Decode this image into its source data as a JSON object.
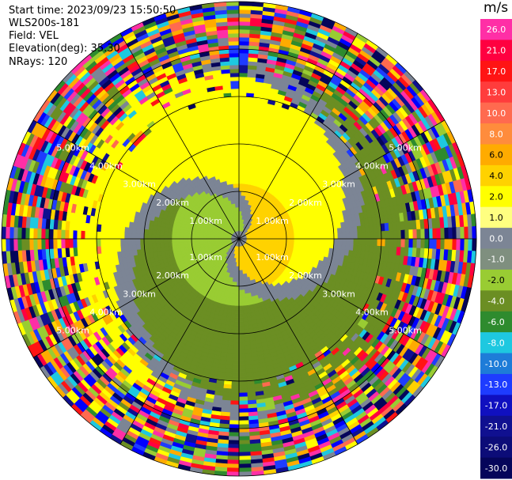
{
  "header": {
    "start_time": "Start time: 2023/09/23 15:50:50",
    "instrument": "WLS200s-181",
    "field": "Field: VEL",
    "elevation": "Elevation(deg): 35.30",
    "nrays": "NRays: 120"
  },
  "chart_data": {
    "type": "heatmap",
    "projection": "polar PPI",
    "field": "VEL",
    "units": "m/s",
    "nrays": 120,
    "elevation_deg": 35.3,
    "max_range_km": 5.0,
    "range_ring_labels": [
      "1.00km",
      "2.00km",
      "3.00km",
      "4.00km",
      "5.00km"
    ],
    "colorbar": {
      "unit": "m/s",
      "tick_labels": [
        "26.0",
        "21.0",
        "17.0",
        "13.0",
        "10.0",
        "8.0",
        "6.0",
        "4.0",
        "2.0",
        "1.0",
        "0.0",
        "-1.0",
        "-2.0",
        "-4.0",
        "-6.0",
        "-8.0",
        "-10.0",
        "-13.0",
        "-17.0",
        "-21.0",
        "-26.0",
        "-30.0"
      ],
      "colors": [
        "#ff2fa6",
        "#ff0040",
        "#ff1414",
        "#ff3c3c",
        "#ff6a4f",
        "#ff8c3c",
        "#ffab00",
        "#ffd200",
        "#ffff00",
        "#ffff80",
        "#7c8595",
        "#7f8f7f",
        "#99cc33",
        "#6b8e23",
        "#2e8b2e",
        "#1ec8e0",
        "#1e7cd8",
        "#1e3cff",
        "#1010c0",
        "#101090",
        "#0c0c78",
        "#05055a"
      ]
    },
    "velocity_pattern": {
      "description_regions": [
        {
          "range_km": [
            0,
            3.2
          ],
          "sector": "north/west",
          "values": [
            1,
            4
          ]
        },
        {
          "range_km": [
            0,
            3.2
          ],
          "sector": "south/east",
          "values": [
            -6,
            -2
          ]
        },
        {
          "range_km": [
            3.2,
            5.0
          ],
          "sector": "all",
          "values": "noise"
        }
      ]
    }
  }
}
